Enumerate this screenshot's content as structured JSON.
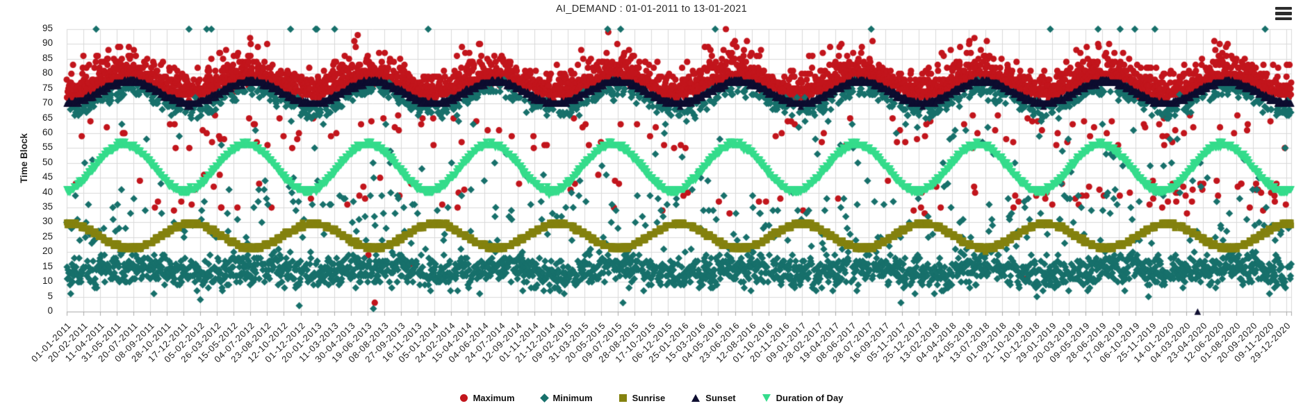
{
  "icons": {
    "menu": "hamburger-icon"
  },
  "chart_data": {
    "type": "scatter",
    "title": "AI_DEMAND : 01-01-2011 to 13-01-2021",
    "xlabel": "",
    "ylabel": "Time Block",
    "x_start_date": "01-01-2011",
    "x_end_date": "13-01-2021",
    "x_days_total": 3665,
    "x_tick_interval_days": 50,
    "x_tick_labels": [
      "01-01-2011",
      "20-02-2011",
      "11-04-2011",
      "31-05-2011",
      "20-07-2011",
      "08-09-2011",
      "28-10-2011",
      "17-12-2011",
      "05-02-2012",
      "26-03-2012",
      "15-05-2012",
      "04-07-2012",
      "23-08-2012",
      "12-10-2012",
      "01-12-2012",
      "20-01-2013",
      "11-03-2013",
      "30-04-2013",
      "19-06-2013",
      "08-08-2013",
      "27-09-2013",
      "16-11-2013",
      "05-01-2014",
      "24-02-2014",
      "15-04-2014",
      "04-06-2014",
      "24-07-2014",
      "12-09-2014",
      "01-11-2014",
      "21-12-2014",
      "09-02-2015",
      "31-03-2015",
      "20-05-2015",
      "09-07-2015",
      "28-08-2015",
      "17-10-2015",
      "06-12-2015",
      "25-01-2016",
      "15-03-2016",
      "04-05-2016",
      "23-06-2016",
      "12-08-2016",
      "01-10-2016",
      "20-11-2016",
      "09-01-2017",
      "28-02-2017",
      "19-04-2017",
      "08-06-2017",
      "28-07-2017",
      "16-09-2017",
      "05-11-2017",
      "25-12-2017",
      "13-02-2018",
      "04-04-2018",
      "24-05-2018",
      "13-07-2018",
      "01-09-2018",
      "21-10-2018",
      "10-12-2018",
      "29-01-2019",
      "20-03-2019",
      "09-05-2019",
      "28-06-2019",
      "17-08-2019",
      "06-10-2019",
      "25-11-2019",
      "14-01-2020",
      "04-03-2020",
      "23-04-2020",
      "12-06-2020",
      "01-08-2020",
      "20-09-2020",
      "09-11-2020",
      "29-12-2020"
    ],
    "ylim": [
      0,
      95
    ],
    "y_ticks": [
      0,
      5,
      10,
      15,
      20,
      25,
      30,
      35,
      40,
      45,
      50,
      55,
      60,
      65,
      70,
      75,
      80,
      85,
      90,
      95
    ],
    "grid": true,
    "legend_position": "bottom",
    "colors": {
      "background": "#ffffff",
      "grid": "#d9d9d9",
      "axis": "#a9a9a9",
      "text": "#1c1c1c",
      "menu_icon": "#2d2d2d"
    },
    "series": [
      {
        "name": "Maximum",
        "marker": "circle",
        "color": "#c2151c",
        "description": "Daily time-block of maximum demand; dense band ~74-90 tracking just above sunset, seasonal swells to ~93, scattered outliers 33-66 (frequent near 36-44 in 2019-2020), rare near 0-20",
        "model": {
          "round": true,
          "components": [
            {
              "kind": "wave",
              "mean": 76.4,
              "amplitude": 2.9,
              "peak_day": 186,
              "noise": 1.15
            },
            {
              "p": 0.285,
              "kind": "wave",
              "mean": 79.6,
              "amplitude": 3.4,
              "peak_day": 168,
              "noise": 2.0
            },
            {
              "p": 0.055,
              "kind": "wave",
              "mean": 84.0,
              "amplitude": 4.5,
              "peak_day": 150,
              "noise": 2.3
            },
            {
              "p": 0.035,
              "kind": "uniform",
              "range": [
                55,
                66
              ]
            },
            {
              "p": 0.022,
              "kind": "uniform",
              "range": [
                33,
                46
              ]
            },
            {
              "p": 0.05,
              "kind": "uniform",
              "range": [
                36,
                44
              ],
              "day_range": [
                2850,
                3665
              ]
            },
            {
              "p": 0.0012,
              "kind": "uniform",
              "range": [
                1,
                20
              ]
            }
          ]
        }
      },
      {
        "name": "Minimum",
        "marker": "diamond",
        "color": "#17706b",
        "description": "Daily time-block of minimum demand; dense morning cloud ~7-20, secondary band ~65-77 hugging below sunset, scatter 22-64, sparse points at 95 and near 0",
        "model": {
          "round": true,
          "components": [
            {
              "kind": "wave",
              "mean": 13.8,
              "amplitude": 1.3,
              "peak_day": 210,
              "noise": 2.7,
              "clip": [
                5,
                21
              ]
            },
            {
              "p": 0.29,
              "kind": "wave",
              "mean": 71.2,
              "amplitude": 3.6,
              "peak_day": 186,
              "noise": 1.4
            },
            {
              "p": 0.075,
              "kind": "uniform",
              "range": [
                22,
                42
              ]
            },
            {
              "p": 0.026,
              "kind": "uniform",
              "range": [
                43,
                64
              ]
            },
            {
              "p": 0.006,
              "kind": "uniform",
              "range": [
                94.6,
                95.4
              ]
            },
            {
              "p": 0.0015,
              "kind": "uniform",
              "range": [
                0,
                7
              ]
            }
          ]
        }
      },
      {
        "name": "Sunrise",
        "marker": "square",
        "color": "#84820f",
        "description": "Sunrise time-block: smooth annual wave, ~21 in June to ~29-30 in early January",
        "model": {
          "round": true,
          "components": [
            {
              "kind": "wave",
              "mean": 25.4,
              "amplitude": 4.1,
              "peak_day": 8,
              "noise": 0.25
            }
          ]
        }
      },
      {
        "name": "Sunset",
        "marker": "triangle-up",
        "color": "#0e0e30",
        "description": "Sunset time-block: smooth annual wave, ~70 in December to ~77 in early July; one outlier at 0 in late 2020",
        "extra_points": [
          [
            3385,
            0
          ]
        ],
        "model": {
          "round": true,
          "components": [
            {
              "kind": "wave",
              "mean": 73.7,
              "amplitude": 3.7,
              "peak_day": 186,
              "noise": 0.25
            }
          ]
        }
      },
      {
        "name": "Duration of Day",
        "marker": "triangle-down",
        "color": "#35dc8c",
        "description": "Day length in time-blocks: smooth annual wave from ~40 in December to ~56 in late June",
        "model": {
          "round": true,
          "components": [
            {
              "kind": "wave",
              "mean": 48.3,
              "amplitude": 7.9,
              "peak_day": 172,
              "noise": 0.3
            }
          ]
        }
      }
    ],
    "generation": {
      "seed": 1337,
      "period_days": 365.25
    }
  }
}
